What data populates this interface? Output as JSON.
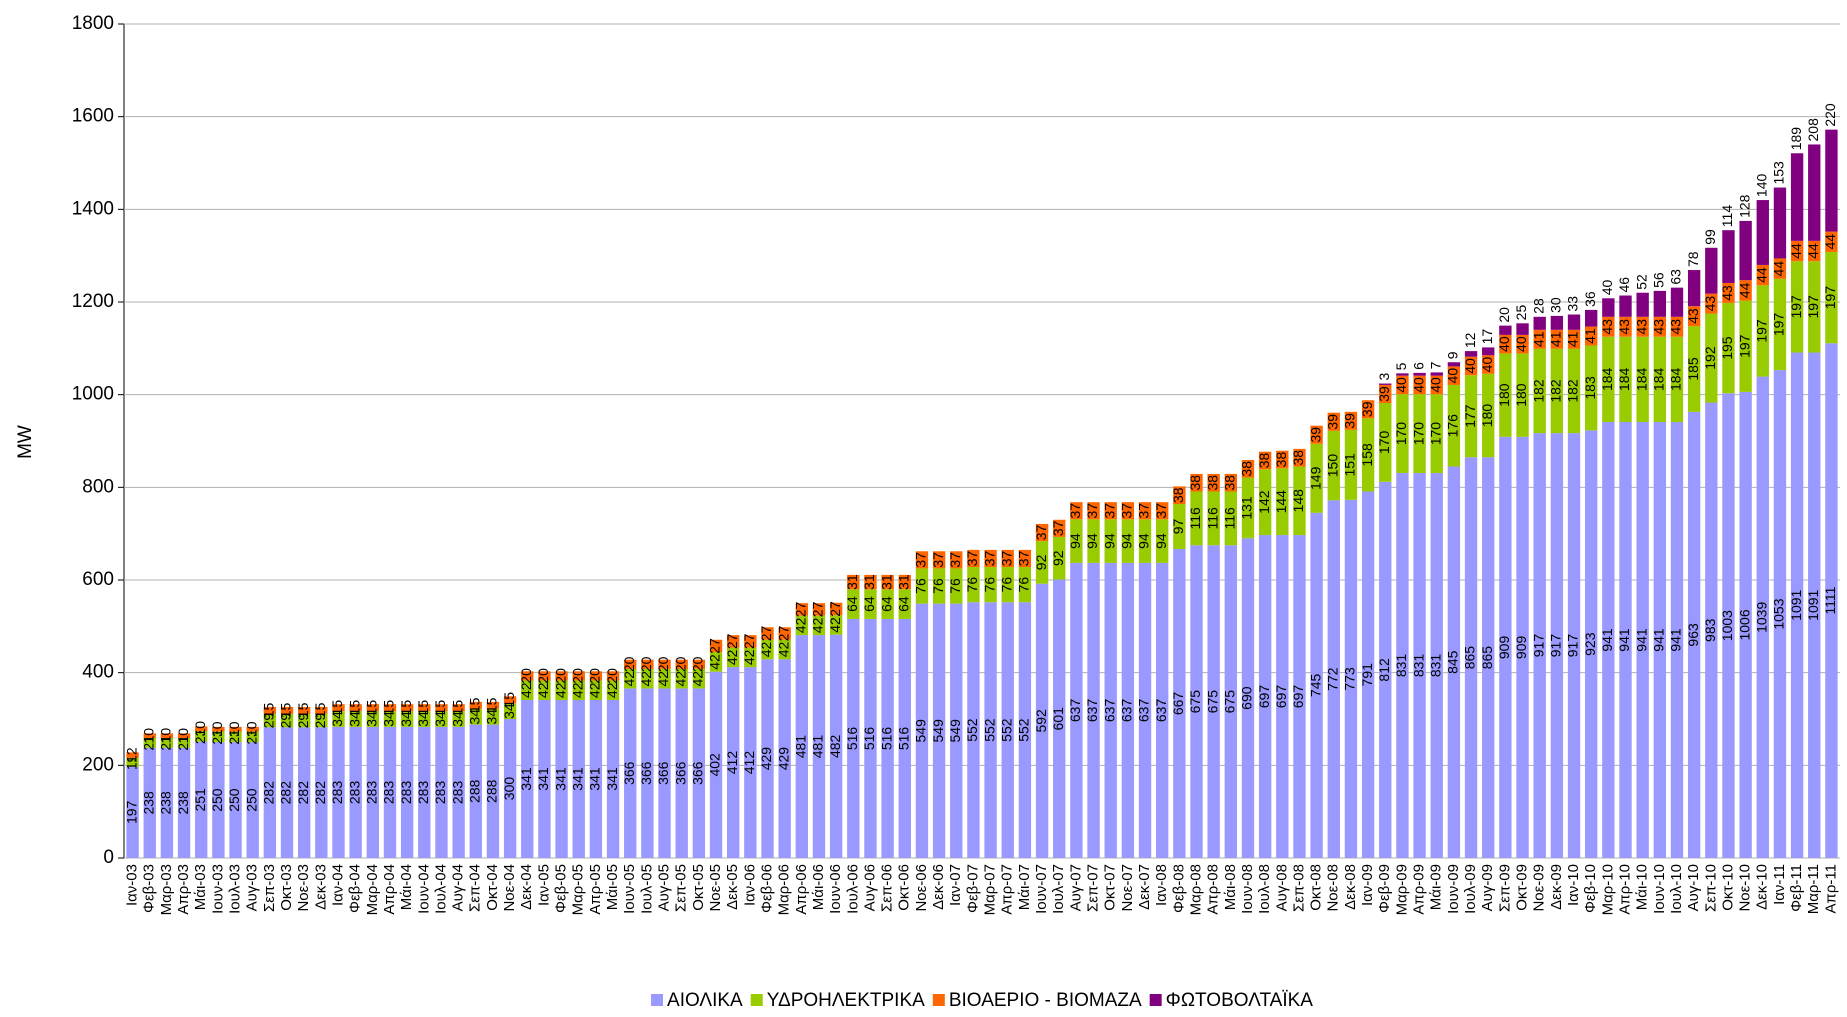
{
  "chart_data": {
    "type": "stacked_bar",
    "y_label": "MW",
    "ylim": [
      0,
      1800
    ],
    "yticks": [
      0,
      200,
      400,
      600,
      800,
      1000,
      1200,
      1400,
      1600,
      1800
    ],
    "grid": true,
    "categories": [
      "Ιαν-03",
      "Φεβ-03",
      "Μαρ-03",
      "Απρ-03",
      "Μάι-03",
      "Ιουν-03",
      "Ιουλ-03",
      "Αυγ-03",
      "Σεπ-03",
      "Οκτ-03",
      "Νοε-03",
      "Δεκ-03",
      "Ιαν-04",
      "Φεβ-04",
      "Μαρ-04",
      "Απρ-04",
      "Μάι-04",
      "Ιουν-04",
      "Ιουλ-04",
      "Αυγ-04",
      "Σεπ-04",
      "Οκτ-04",
      "Νοε-04",
      "Δεκ-04",
      "Ιαν-05",
      "Φεβ-05",
      "Μαρ-05",
      "Απρ-05",
      "Μάι-05",
      "Ιουν-05",
      "Ιουλ-05",
      "Αυγ-05",
      "Σεπ-05",
      "Οκτ-05",
      "Νοε-05",
      "Δεκ-05",
      "Ιαν-06",
      "Φεβ-06",
      "Μαρ-06",
      "Απρ-06",
      "Μάι-06",
      "Ιουν-06",
      "Ιουλ-06",
      "Αυγ-06",
      "Σεπ-06",
      "Οκτ-06",
      "Νοε-06",
      "Δεκ-06",
      "Ιαν-07",
      "Φεβ-07",
      "Μαρ-07",
      "Απρ-07",
      "Μάι-07",
      "Ιουν-07",
      "Ιουλ-07",
      "Αυγ-07",
      "Σεπ-07",
      "Οκτ-07",
      "Νοε-07",
      "Δεκ-07",
      "Ιαν-08",
      "Φεβ-08",
      "Μαρ-08",
      "Απρ-08",
      "Μάι-08",
      "Ιουν-08",
      "Ιουλ-08",
      "Αυγ-08",
      "Σεπ-08",
      "Οκτ-08",
      "Νοε-08",
      "Δεκ-08",
      "Ιαν-09",
      "Φεβ-09",
      "Μαρ-09",
      "Απρ-09",
      "Μάι-09",
      "Ιουν-09",
      "Ιουλ-09",
      "Αυγ-09",
      "Σεπ-09",
      "Οκτ-09",
      "Νοε-09",
      "Δεκ-09",
      "Ιαν-10",
      "Φεβ-10",
      "Μαρ-10",
      "Απρ-10",
      "Μάι-10",
      "Ιουν-10",
      "Ιουλ-10",
      "Αυγ-10",
      "Σεπ-10",
      "Οκτ-10",
      "Νοε-10",
      "Δεκ-10",
      "Ιαν-11",
      "Φεβ-11",
      "Μαρ-11",
      "Απρ-11"
    ],
    "series": [
      {
        "name": "ΑΙΟΛΙΚΑ",
        "color": "#9999ff",
        "values": [
          197,
          238,
          238,
          238,
          251,
          250,
          250,
          250,
          282,
          282,
          282,
          282,
          283,
          283,
          283,
          283,
          283,
          283,
          283,
          283,
          288,
          288,
          300,
          341,
          341,
          341,
          341,
          341,
          341,
          366,
          366,
          366,
          366,
          366,
          402,
          412,
          412,
          429,
          429,
          481,
          481,
          482,
          516,
          516,
          516,
          516,
          549,
          549,
          549,
          552,
          552,
          552,
          552,
          592,
          601,
          637,
          637,
          637,
          637,
          637,
          637,
          667,
          675,
          675,
          675,
          690,
          697,
          697,
          697,
          745,
          772,
          773,
          791,
          812,
          831,
          831,
          831,
          845,
          865,
          865,
          909,
          909,
          917,
          917,
          917,
          923,
          941,
          941,
          941,
          941,
          941,
          963,
          983,
          1003,
          1006,
          1039,
          1053,
          1091,
          1091,
          1111
        ]
      },
      {
        "name": "ΥΔΡΟΗΛΕΚΤΡΙΚΑ",
        "color": "#99cc00",
        "values": [
          19,
          21,
          21,
          21,
          23,
          23,
          23,
          23,
          29,
          29,
          29,
          29,
          34,
          34,
          34,
          34,
          34,
          34,
          34,
          34,
          34,
          34,
          34,
          42,
          42,
          42,
          42,
          42,
          42,
          42,
          42,
          42,
          42,
          42,
          42,
          42,
          42,
          42,
          42,
          42,
          42,
          42,
          64,
          64,
          64,
          64,
          76,
          76,
          76,
          76,
          76,
          76,
          76,
          92,
          92,
          94,
          94,
          94,
          94,
          94,
          94,
          97,
          116,
          116,
          116,
          131,
          142,
          144,
          148,
          149,
          150,
          151,
          158,
          170,
          170,
          170,
          170,
          176,
          177,
          180,
          180,
          180,
          182,
          182,
          182,
          183,
          184,
          184,
          184,
          184,
          184,
          185,
          192,
          195,
          197,
          197,
          197,
          197,
          197,
          197
        ]
      },
      {
        "name": "ΒΙΟΑΕΡΙΟ - ΒΙΟΜΑΖΑ",
        "color": "#ff6600",
        "values": [
          12,
          10,
          10,
          10,
          10,
          10,
          10,
          10,
          15,
          15,
          15,
          15,
          15,
          15,
          15,
          15,
          15,
          15,
          15,
          15,
          15,
          15,
          15,
          20,
          20,
          20,
          20,
          20,
          20,
          20,
          20,
          20,
          20,
          20,
          27,
          27,
          27,
          27,
          27,
          27,
          27,
          27,
          31,
          31,
          31,
          31,
          37,
          37,
          37,
          37,
          37,
          37,
          37,
          37,
          37,
          37,
          37,
          37,
          37,
          37,
          37,
          38,
          38,
          38,
          38,
          38,
          38,
          38,
          38,
          39,
          39,
          39,
          39,
          39,
          40,
          40,
          40,
          40,
          40,
          40,
          40,
          40,
          41,
          41,
          41,
          41,
          43,
          43,
          43,
          43,
          43,
          43,
          43,
          43,
          44,
          44,
          44,
          44,
          44,
          44
        ]
      },
      {
        "name": "ΦΩΤΟΒΟΛΤΑΪΚΑ",
        "color": "#800080",
        "values": [
          null,
          null,
          null,
          null,
          null,
          null,
          null,
          null,
          null,
          null,
          null,
          null,
          null,
          null,
          null,
          null,
          null,
          null,
          null,
          null,
          null,
          null,
          null,
          null,
          null,
          null,
          null,
          null,
          null,
          null,
          null,
          null,
          null,
          null,
          null,
          null,
          null,
          null,
          null,
          null,
          null,
          null,
          null,
          null,
          null,
          null,
          null,
          null,
          null,
          null,
          null,
          null,
          null,
          null,
          null,
          null,
          null,
          null,
          null,
          null,
          null,
          null,
          null,
          null,
          null,
          null,
          null,
          null,
          null,
          null,
          null,
          null,
          null,
          3,
          5,
          6,
          7,
          9,
          12,
          17,
          20,
          25,
          28,
          30,
          33,
          36,
          40,
          46,
          52,
          56,
          63,
          78,
          99,
          114,
          128,
          140,
          153,
          189,
          208,
          220
        ]
      }
    ]
  }
}
